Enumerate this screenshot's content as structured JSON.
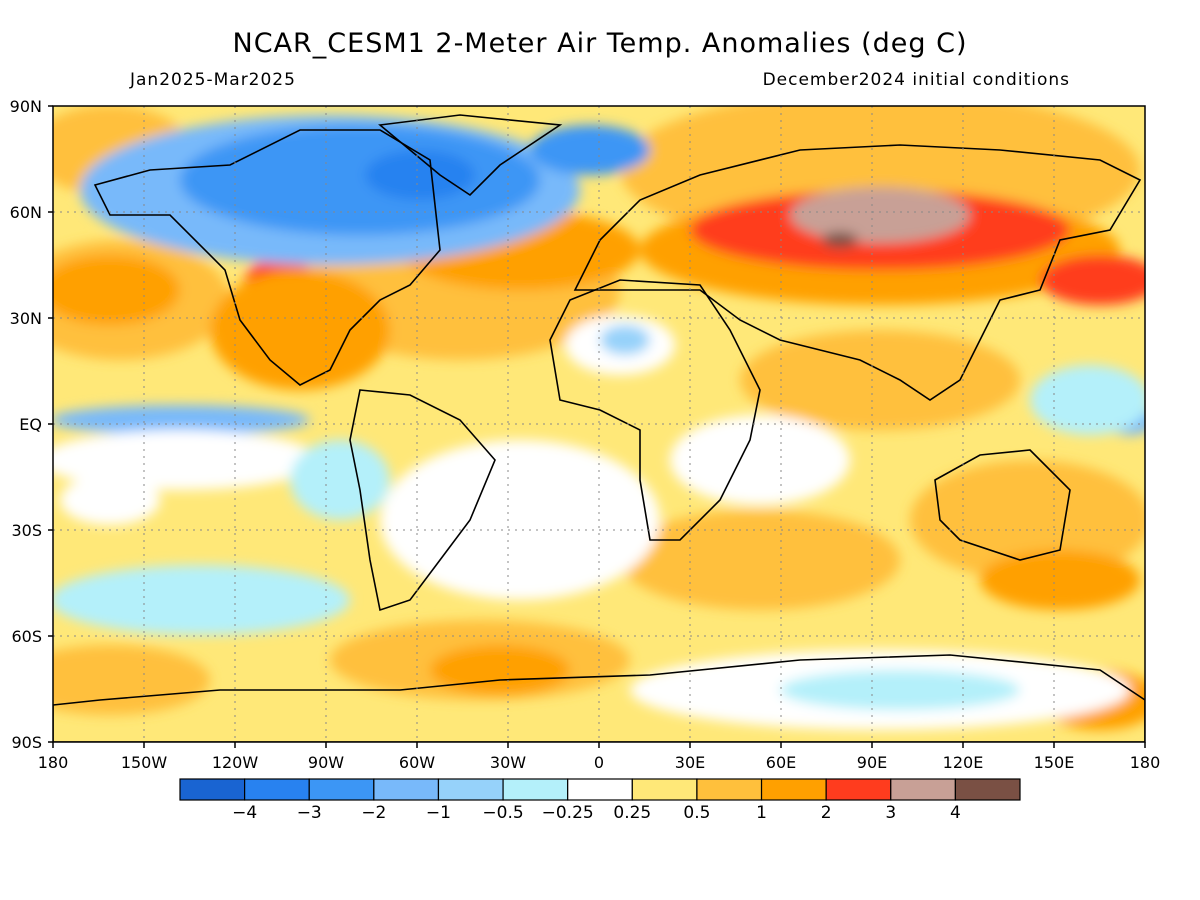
{
  "title": "NCAR_CESM1 2-Meter Air Temp. Anomalies (deg C)",
  "period": "Jan2025-Mar2025",
  "init": "December2024 initial conditions",
  "lat_labels": [
    "90N",
    "60N",
    "30N",
    "EQ",
    "30S",
    "60S",
    "90S"
  ],
  "lon_labels": [
    "180",
    "150W",
    "120W",
    "90W",
    "60W",
    "30W",
    "0",
    "30E",
    "60E",
    "90E",
    "120E",
    "150E",
    "180"
  ],
  "legend": {
    "colors": [
      "#1964d2",
      "#2882f0",
      "#3c96f5",
      "#78b9fa",
      "#96d2fa",
      "#b4f0fa",
      "#ffffff",
      "#ffe878",
      "#ffc03c",
      "#ffa000",
      "#ff3c1e",
      "#c8a096",
      "#7a5044"
    ],
    "labels": [
      "-4",
      "-3",
      "-2",
      "-1",
      "-0.5",
      "-0.25",
      "0.25",
      "0.5",
      "1",
      "2",
      "3",
      "4"
    ]
  }
}
